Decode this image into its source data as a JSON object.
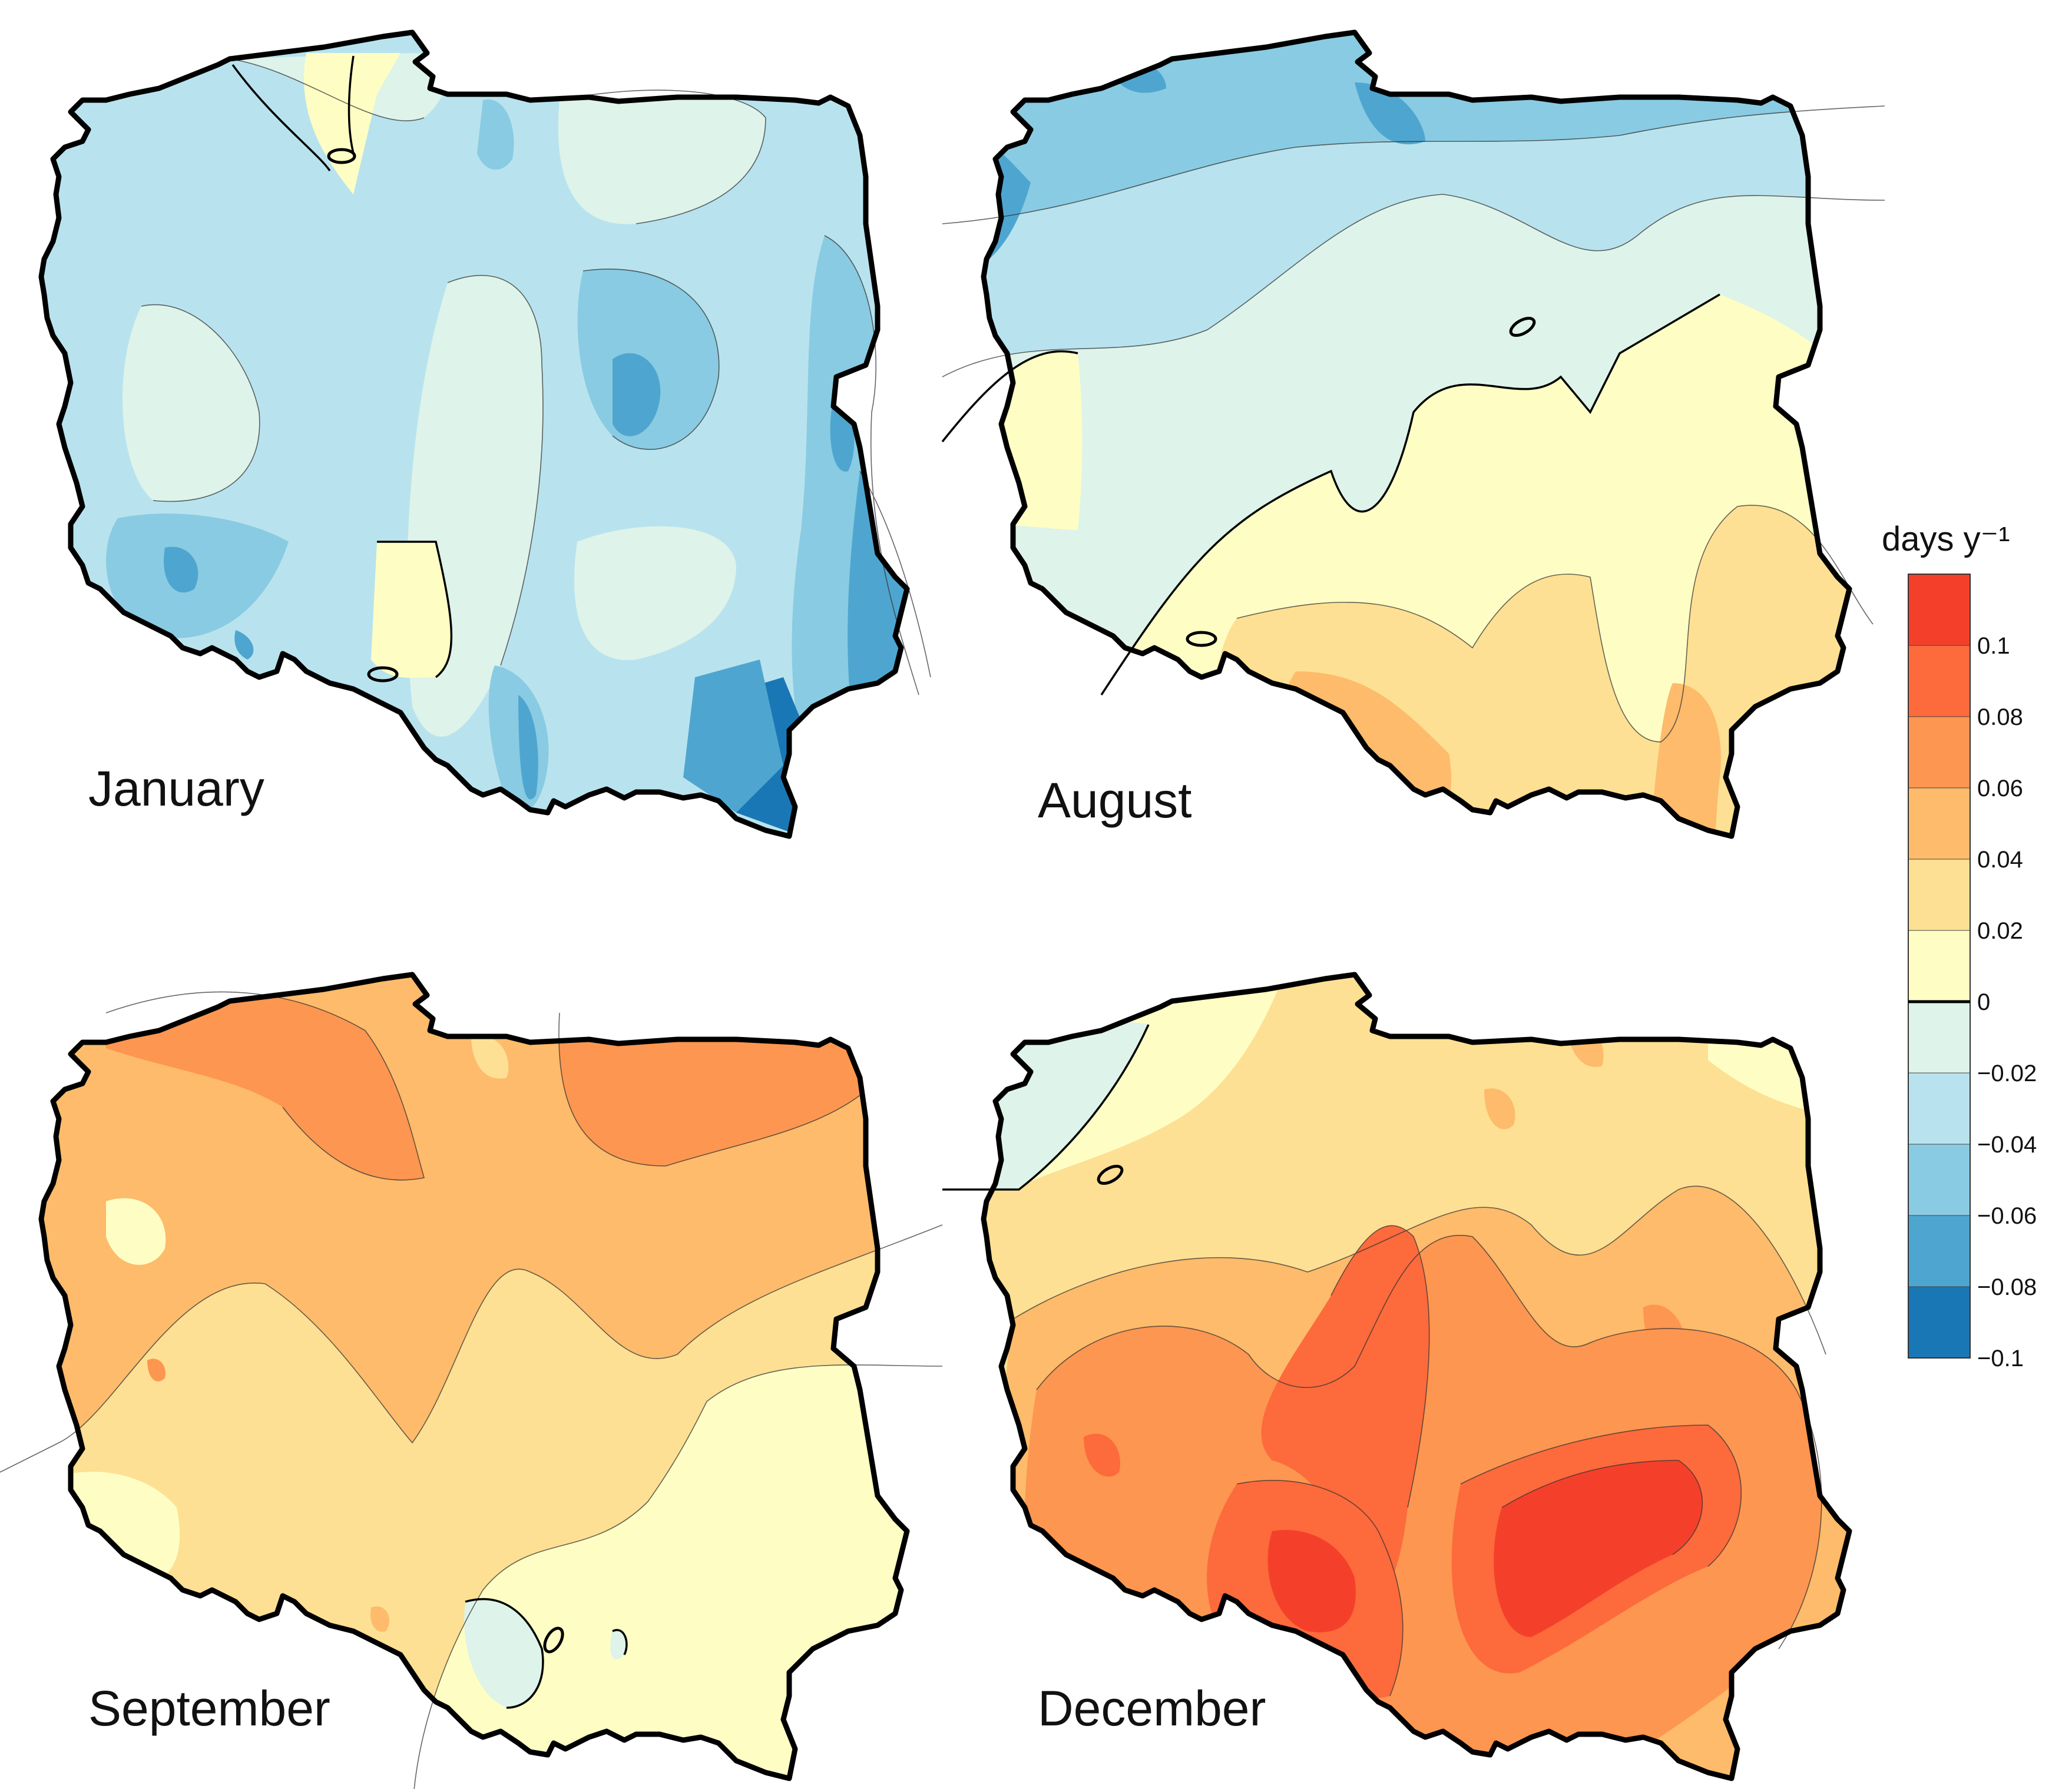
{
  "panels": [
    {
      "id": "january",
      "label": "January"
    },
    {
      "id": "august",
      "label": "August"
    },
    {
      "id": "september",
      "label": "September"
    },
    {
      "id": "december",
      "label": "December"
    }
  ],
  "legend": {
    "title": "days y⁻¹",
    "ticks": [
      "0.1",
      "0.08",
      "0.06",
      "0.04",
      "0.02",
      "0",
      "−0.02",
      "−0.04",
      "−0.06",
      "−0.08",
      "−0.1"
    ],
    "colors": [
      "#f4402a",
      "#fd6a3c",
      "#fd9650",
      "#fdbb6b",
      "#fde093",
      "#fefec4",
      "#def3e9",
      "#b8e3ee",
      "#89cbe2",
      "#4ea6d0",
      "#1a77b6"
    ]
  }
}
